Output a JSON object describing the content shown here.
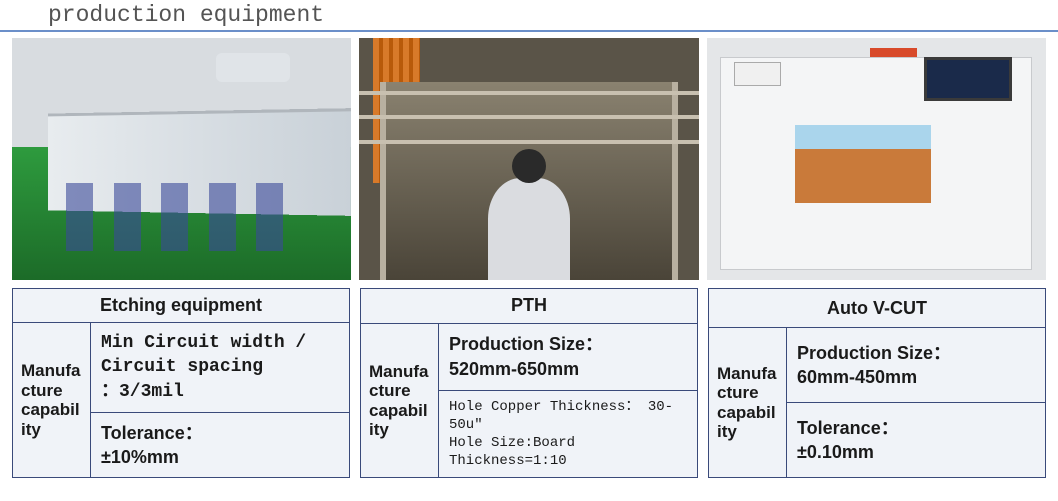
{
  "page": {
    "title": "production equipment",
    "title_color": "#545454",
    "underline_color": "#6b8fc9",
    "table_bg": "#f0f3f8",
    "table_border": "#3a4a7a"
  },
  "panels": [
    {
      "id": "etching",
      "image_alt": "Etching production line with white machines on green floor",
      "header": "Etching equipment",
      "row_label": "Manufacture capability",
      "rows": [
        {
          "text": "Min Circuit width / Circuit spacing\n：3/3mil",
          "style": "mono"
        },
        {
          "text": "Tolerance：\n±10%mm",
          "style": "sans"
        }
      ]
    },
    {
      "id": "pth",
      "image_alt": "PTH plating line with operator viewed from above",
      "header": "PTH",
      "row_label": "Manufacture capability",
      "rows": [
        {
          "text": "Production Size：\n520mm-650mm",
          "style": "sans"
        },
        {
          "text": "Hole Copper Thickness： 30-50u″\nHole Size:Board Thickness=1:10",
          "style": "small"
        }
      ]
    },
    {
      "id": "vcut",
      "image_alt": "Auto V-CUT machine with touchscreen",
      "header": "Auto V-CUT",
      "row_label": "Manufacture capability",
      "rows": [
        {
          "text": "Production Size：\n60mm-450mm",
          "style": "sans"
        },
        {
          "text": "Tolerance：\n±0.10mm",
          "style": "sans"
        }
      ]
    }
  ]
}
